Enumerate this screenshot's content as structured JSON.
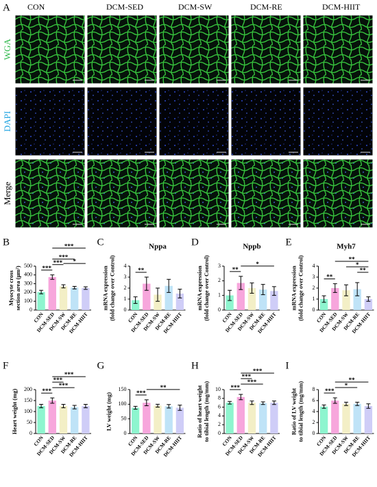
{
  "figure_a": {
    "panel": "A",
    "columns": [
      "CON",
      "DCM-SED",
      "DCM-SW",
      "DCM-RE",
      "DCM-HIIT"
    ],
    "rows": [
      "WGA",
      "DAPI",
      "Merge"
    ]
  },
  "bar_colors": [
    "#8ef5cf",
    "#f7a6dc",
    "#f3efc6",
    "#bfe3f7",
    "#cfcdf7"
  ],
  "chart_data": [
    {
      "type": "bar",
      "panel": "B",
      "ylabel": [
        "Myocyte cross",
        "section area (μm²)"
      ],
      "categories": [
        "CON",
        "DCM-SED",
        "DCM-SW",
        "DCM-RE",
        "DCM-HIIT"
      ],
      "values": [
        205,
        375,
        270,
        255,
        250
      ],
      "errors": [
        20,
        25,
        18,
        15,
        15
      ],
      "ylim": [
        0,
        500
      ],
      "yticks": [
        0,
        100,
        200,
        300,
        400,
        500
      ],
      "significance": [
        {
          "from": "CON",
          "to": "DCM-SED",
          "label": "***"
        },
        {
          "from": "DCM-SED",
          "to": "DCM-SW",
          "label": "***"
        },
        {
          "from": "DCM-SED",
          "to": "DCM-RE",
          "label": "***"
        },
        {
          "from": "DCM-SW",
          "to": "DCM-HIIT",
          "label": "*"
        },
        {
          "from": "DCM-SED",
          "to": "DCM-HIIT",
          "label": "***"
        }
      ]
    },
    {
      "type": "bar",
      "panel": "C",
      "title": "Nppa",
      "ylabel": [
        "mRNA expression",
        "(fold change over Control)"
      ],
      "categories": [
        "CON",
        "DCM-SED",
        "DCM-SW",
        "DCM-RE",
        "DCM-HIIT"
      ],
      "values": [
        0.9,
        2.4,
        1.4,
        2.2,
        1.5
      ],
      "errors": [
        0.3,
        0.6,
        0.6,
        0.6,
        0.4
      ],
      "ylim": [
        0,
        4
      ],
      "yticks": [
        0,
        1,
        2,
        3,
        4
      ],
      "significance": [
        {
          "from": "CON",
          "to": "DCM-SED",
          "label": "**"
        }
      ]
    },
    {
      "type": "bar",
      "panel": "D",
      "title": "Nppb",
      "ylabel": [
        "mRNA expression",
        "(fold change over Control)"
      ],
      "categories": [
        "CON",
        "DCM-SED",
        "DCM-SW",
        "DCM-RE",
        "DCM-HIIT"
      ],
      "values": [
        1.0,
        1.85,
        1.5,
        1.4,
        1.3
      ],
      "errors": [
        0.35,
        0.45,
        0.35,
        0.35,
        0.3
      ],
      "ylim": [
        0,
        3
      ],
      "yticks": [
        0,
        1,
        2,
        3
      ],
      "significance": [
        {
          "from": "CON",
          "to": "DCM-SED",
          "label": "**"
        },
        {
          "from": "DCM-SED",
          "to": "DCM-HIIT",
          "label": "*"
        }
      ]
    },
    {
      "type": "bar",
      "panel": "E",
      "title": "Myh7",
      "ylabel": [
        "mRNA expression",
        "(fold change over Control)"
      ],
      "categories": [
        "CON",
        "DCM-SED",
        "DCM-SW",
        "DCM-RE",
        "DCM-HIIT"
      ],
      "values": [
        1.0,
        2.0,
        1.8,
        1.9,
        1.0
      ],
      "errors": [
        0.3,
        0.4,
        0.5,
        0.6,
        0.2
      ],
      "ylim": [
        0,
        4
      ],
      "yticks": [
        0,
        1,
        2,
        3,
        4
      ],
      "significance": [
        {
          "from": "CON",
          "to": "DCM-SED",
          "label": "**"
        },
        {
          "from": "DCM-RE",
          "to": "DCM-HIIT",
          "label": "**"
        },
        {
          "from": "DCM-SW",
          "to": "DCM-HIIT",
          "label": "*"
        },
        {
          "from": "DCM-SED",
          "to": "DCM-HIIT",
          "label": "**"
        }
      ]
    },
    {
      "type": "bar",
      "panel": "F",
      "ylabel": [
        "Heart weight (mg)"
      ],
      "categories": [
        "CON",
        "DCM-SED",
        "DCM-SW",
        "DCM-RE",
        "DCM-HIIT"
      ],
      "values": [
        125,
        150,
        125,
        120,
        125
      ],
      "errors": [
        8,
        12,
        8,
        8,
        8
      ],
      "ylim": [
        0,
        200
      ],
      "yticks": [
        0,
        50,
        100,
        150,
        200
      ],
      "significance": [
        {
          "from": "CON",
          "to": "DCM-SED",
          "label": "***"
        },
        {
          "from": "DCM-SED",
          "to": "DCM-RE",
          "label": "***"
        },
        {
          "from": "DCM-SED",
          "to": "DCM-SW",
          "label": "***"
        },
        {
          "from": "DCM-SED",
          "to": "DCM-HIIT",
          "label": "***"
        }
      ]
    },
    {
      "type": "bar",
      "panel": "G",
      "ylabel": [
        "LV weight (mg)"
      ],
      "categories": [
        "CON",
        "DCM-SED",
        "DCM-SW",
        "DCM-RE",
        "DCM-HIIT"
      ],
      "values": [
        88,
        105,
        95,
        93,
        88
      ],
      "errors": [
        5,
        10,
        5,
        6,
        9
      ],
      "ylim": [
        0,
        150
      ],
      "yticks": [
        0,
        50,
        100,
        150
      ],
      "significance": [
        {
          "from": "CON",
          "to": "DCM-SED",
          "label": "***"
        },
        {
          "from": "DCM-SED",
          "to": "DCM-HIIT",
          "label": "**"
        }
      ]
    },
    {
      "type": "bar",
      "panel": "H",
      "ylabel": [
        "Ratio of heart weight",
        "to tibial length (mg/mm)"
      ],
      "categories": [
        "CON",
        "DCM-SED",
        "DCM-SW",
        "DCM-RE",
        "DCM-HIIT"
      ],
      "values": [
        7.0,
        8.3,
        7.0,
        6.9,
        7.0
      ],
      "errors": [
        0.3,
        0.6,
        0.4,
        0.3,
        0.4
      ],
      "ylim": [
        0,
        10
      ],
      "yticks": [
        0,
        2,
        4,
        6,
        8,
        10
      ],
      "significance": [
        {
          "from": "CON",
          "to": "DCM-SED",
          "label": "***"
        },
        {
          "from": "DCM-SED",
          "to": "DCM-RE",
          "label": "***"
        },
        {
          "from": "DCM-SED",
          "to": "DCM-SW",
          "label": "***"
        },
        {
          "from": "DCM-SED",
          "to": "DCM-HIIT",
          "label": "***"
        }
      ]
    },
    {
      "type": "bar",
      "panel": "I",
      "ylabel": [
        "Ratio of LV weight",
        "to tibial length (mg/mm)"
      ],
      "categories": [
        "CON",
        "DCM-SED",
        "DCM-SW",
        "DCM-RE",
        "DCM-HIIT"
      ],
      "values": [
        4.9,
        6.0,
        5.4,
        5.4,
        5.0
      ],
      "errors": [
        0.3,
        0.5,
        0.3,
        0.3,
        0.4
      ],
      "ylim": [
        0,
        8
      ],
      "yticks": [
        0,
        2,
        4,
        6,
        8
      ],
      "significance": [
        {
          "from": "CON",
          "to": "DCM-SED",
          "label": "***"
        },
        {
          "from": "DCM-SED",
          "to": "DCM-RE",
          "label": "*"
        },
        {
          "from": "DCM-SED",
          "to": "DCM-HIIT",
          "label": "**"
        }
      ]
    }
  ]
}
